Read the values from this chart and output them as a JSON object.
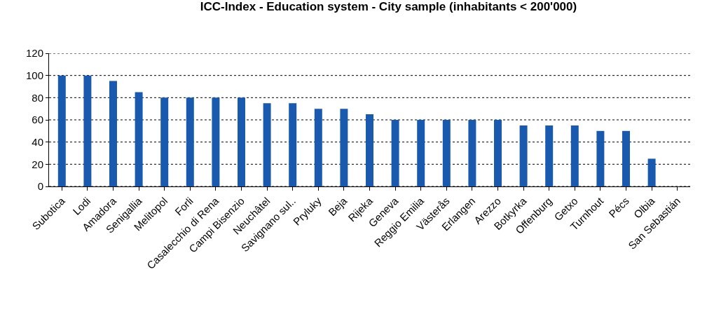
{
  "chart_data": {
    "type": "bar",
    "title": "ICC-Index - Education system - City sample (inhabitants < 200'000)",
    "categories": [
      "Subotica",
      "Lodi",
      "Amadora",
      "Senigallia",
      "Melitopol",
      "Forli",
      "Casalecchio di Rena",
      "Campi Bisenzio",
      "Neuchâtel",
      "Savignano sul..",
      "Pryluky",
      "Beja",
      "Rijeka",
      "Geneva",
      "Reggio Emilia",
      "Västerås",
      "Erlangen",
      "Arezzo",
      "Botkyrka",
      "Offenburg",
      "Getxo",
      "Turnhout",
      "Pécs",
      "Olbia",
      "San Sebastián"
    ],
    "values": [
      100,
      100,
      95,
      85,
      80,
      80,
      80,
      80,
      75,
      75,
      70,
      70,
      65,
      60,
      60,
      60,
      60,
      60,
      55,
      55,
      55,
      50,
      50,
      25,
      0
    ],
    "color": "#1a5aae",
    "ylim": [
      0,
      120
    ],
    "yticks": [
      0,
      20,
      40,
      60,
      80,
      100,
      120
    ],
    "grid": "y"
  }
}
